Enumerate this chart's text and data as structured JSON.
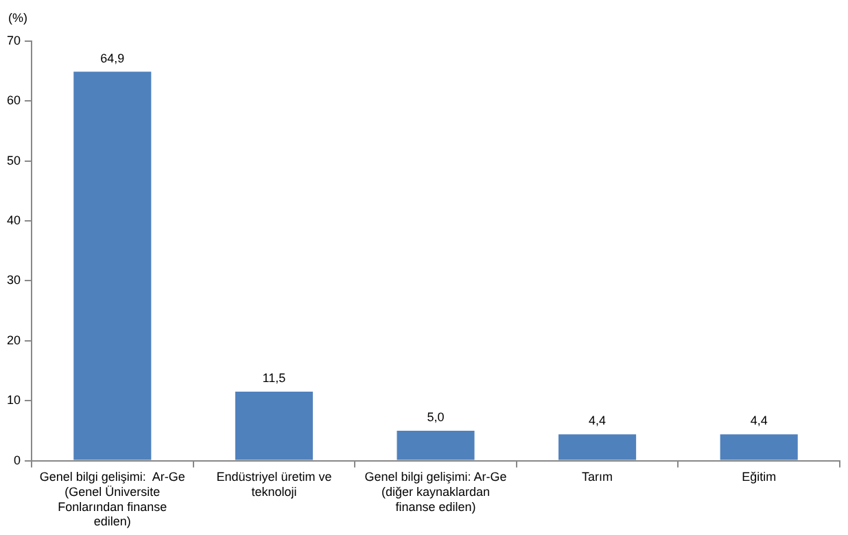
{
  "chart_data": {
    "type": "bar",
    "ylabel": "(%)",
    "categories": [
      "Genel bilgi gelişimi:  Ar-Ge (Genel Üniversite Fonlarından finanse edilen)",
      "Endüstriyel üretim ve teknoloji",
      "Genel bilgi gelişimi: Ar-Ge (diğer kaynaklardan finanse edilen)",
      "Tarım",
      "Eğitim"
    ],
    "values": [
      64.9,
      11.5,
      5.0,
      4.4,
      4.4
    ],
    "value_labels": [
      "64,9",
      "11,5",
      "5,0",
      "4,4",
      "4,4"
    ],
    "color": "#4f81bd",
    "ylim": [
      0,
      70
    ],
    "yticks": [
      0,
      10,
      20,
      30,
      40,
      50,
      60,
      70
    ],
    "grid": false,
    "legend": false
  }
}
